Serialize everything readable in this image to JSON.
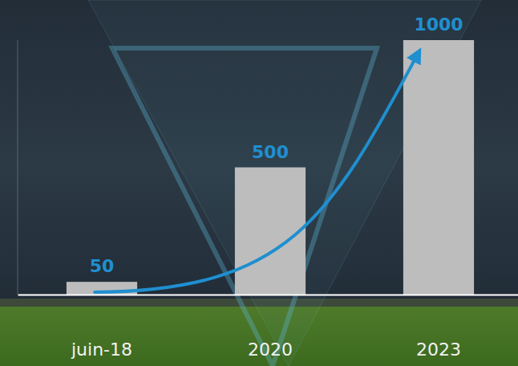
{
  "chart_data": {
    "type": "bar",
    "categories": [
      "juin-18",
      "2020",
      "2023"
    ],
    "values": [
      50,
      500,
      1000
    ],
    "color": "#bdbdbd",
    "ylim": [
      0,
      1000
    ],
    "data_labels": true,
    "tick_labels": "x"
  }
}
